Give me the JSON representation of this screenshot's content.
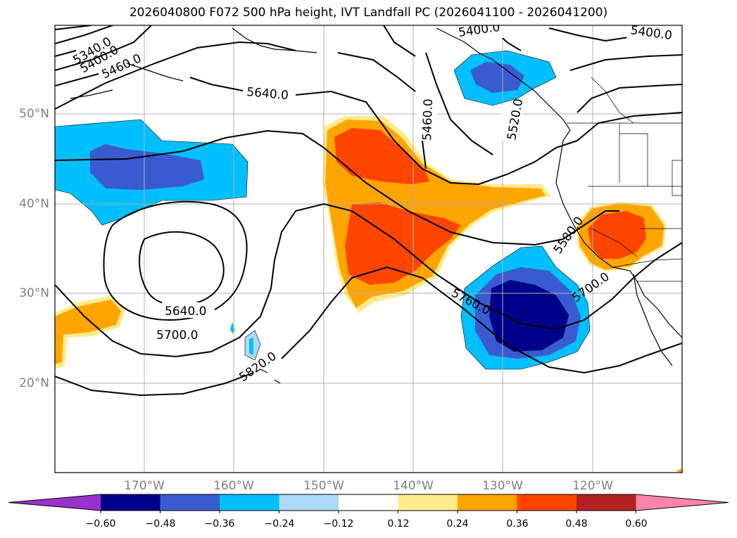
{
  "title": "2026040800 F072 500 hPa height, IVT Landfall PC (2026041100 - 2026041200)",
  "lat_labels": [
    "50°N",
    "40°N",
    "30°N",
    "20°N"
  ],
  "lon_labels": [
    "170°W",
    "160°W",
    "150°W",
    "140°W",
    "130°W",
    "120°W"
  ],
  "contour_labels": {
    "c5340": "5340.0",
    "c5400a": "5400.0",
    "c5460a": "5460.0",
    "c5400b": "5400.0",
    "c5400c": "5400.0",
    "c5640a": "5640.0",
    "c5460b": "5460.0",
    "c5520": "5520.0",
    "c5580": "5580.0",
    "c5640b": "5640.0",
    "c5700a": "5700.0",
    "c5760": "5760.0",
    "c5700b": "5700.0",
    "c5820": "5820.0"
  },
  "colorbar": {
    "ticks": [
      "−0.60",
      "−0.48",
      "−0.36",
      "−0.24",
      "−0.12",
      "0.12",
      "0.24",
      "0.36",
      "0.48",
      "0.60"
    ],
    "colors": [
      "#9932cc",
      "#00008b",
      "#3a5bd0",
      "#00bfff",
      "#add8f7",
      "#ffffff",
      "#ffeb8a",
      "#ffa500",
      "#ff4500",
      "#b22222",
      "#ff85a8"
    ]
  }
}
